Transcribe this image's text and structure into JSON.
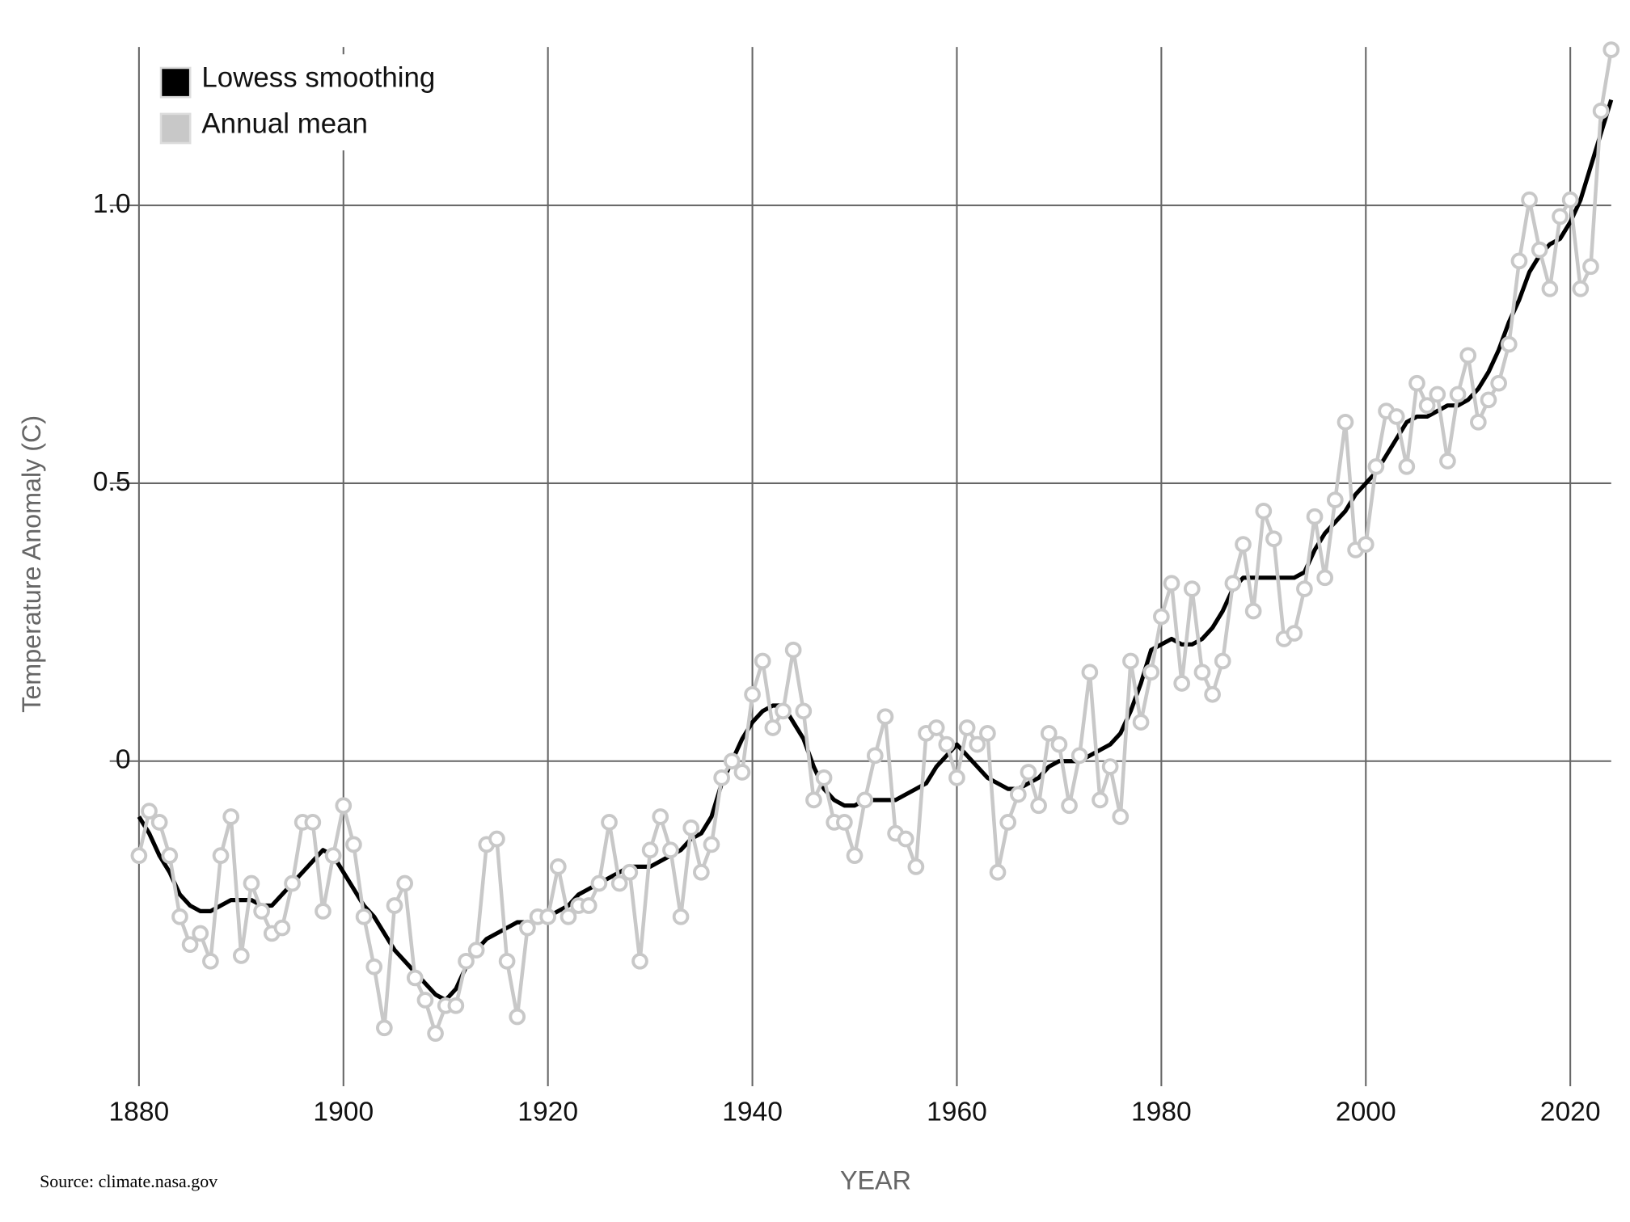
{
  "chart_data": {
    "type": "line",
    "xlabel": "YEAR",
    "ylabel": "Temperature Anomaly (C)",
    "source": "Source: climate.nasa.gov",
    "x": [
      1880,
      1881,
      1882,
      1883,
      1884,
      1885,
      1886,
      1887,
      1888,
      1889,
      1890,
      1891,
      1892,
      1893,
      1894,
      1895,
      1896,
      1897,
      1898,
      1899,
      1900,
      1901,
      1902,
      1903,
      1904,
      1905,
      1906,
      1907,
      1908,
      1909,
      1910,
      1911,
      1912,
      1913,
      1914,
      1915,
      1916,
      1917,
      1918,
      1919,
      1920,
      1921,
      1922,
      1923,
      1924,
      1925,
      1926,
      1927,
      1928,
      1929,
      1930,
      1931,
      1932,
      1933,
      1934,
      1935,
      1936,
      1937,
      1938,
      1939,
      1940,
      1941,
      1942,
      1943,
      1944,
      1945,
      1946,
      1947,
      1948,
      1949,
      1950,
      1951,
      1952,
      1953,
      1954,
      1955,
      1956,
      1957,
      1958,
      1959,
      1960,
      1961,
      1962,
      1963,
      1964,
      1965,
      1966,
      1967,
      1968,
      1969,
      1970,
      1971,
      1972,
      1973,
      1974,
      1975,
      1976,
      1977,
      1978,
      1979,
      1980,
      1981,
      1982,
      1983,
      1984,
      1985,
      1986,
      1987,
      1988,
      1989,
      1990,
      1991,
      1992,
      1993,
      1994,
      1995,
      1996,
      1997,
      1998,
      1999,
      2000,
      2001,
      2002,
      2003,
      2004,
      2005,
      2006,
      2007,
      2008,
      2009,
      2010,
      2011,
      2012,
      2013,
      2014,
      2015,
      2016,
      2017,
      2018,
      2019,
      2020,
      2021,
      2022,
      2023,
      2024
    ],
    "series": [
      {
        "name": "Lowess smoothing",
        "color": "#000000",
        "marker": "none",
        "values": [
          -0.1,
          -0.13,
          -0.17,
          -0.2,
          -0.24,
          -0.26,
          -0.27,
          -0.27,
          -0.26,
          -0.25,
          -0.25,
          -0.25,
          -0.26,
          -0.26,
          -0.24,
          -0.22,
          -0.2,
          -0.18,
          -0.16,
          -0.17,
          -0.2,
          -0.23,
          -0.26,
          -0.28,
          -0.31,
          -0.34,
          -0.36,
          -0.38,
          -0.4,
          -0.42,
          -0.43,
          -0.41,
          -0.37,
          -0.34,
          -0.32,
          -0.31,
          -0.3,
          -0.29,
          -0.29,
          -0.29,
          -0.28,
          -0.27,
          -0.26,
          -0.24,
          -0.23,
          -0.22,
          -0.21,
          -0.2,
          -0.19,
          -0.19,
          -0.19,
          -0.18,
          -0.17,
          -0.16,
          -0.14,
          -0.13,
          -0.1,
          -0.04,
          0.0,
          0.04,
          0.07,
          0.09,
          0.1,
          0.1,
          0.07,
          0.04,
          -0.01,
          -0.05,
          -0.07,
          -0.08,
          -0.08,
          -0.07,
          -0.07,
          -0.07,
          -0.07,
          -0.06,
          -0.05,
          -0.04,
          -0.01,
          0.01,
          0.03,
          0.01,
          -0.01,
          -0.03,
          -0.04,
          -0.05,
          -0.05,
          -0.04,
          -0.03,
          -0.01,
          0.0,
          0.0,
          0.0,
          0.01,
          0.02,
          0.03,
          0.05,
          0.09,
          0.14,
          0.2,
          0.21,
          0.22,
          0.21,
          0.21,
          0.22,
          0.24,
          0.27,
          0.31,
          0.33,
          0.33,
          0.33,
          0.33,
          0.33,
          0.33,
          0.34,
          0.38,
          0.41,
          0.43,
          0.45,
          0.48,
          0.5,
          0.52,
          0.55,
          0.58,
          0.61,
          0.62,
          0.62,
          0.63,
          0.64,
          0.64,
          0.65,
          0.67,
          0.7,
          0.74,
          0.79,
          0.83,
          0.88,
          0.91,
          0.93,
          0.94,
          0.97,
          1.01,
          1.07,
          1.13,
          1.19
        ]
      },
      {
        "name": "Annual mean",
        "color": "#c8c8c8",
        "marker": "circle",
        "values": [
          -0.17,
          -0.09,
          -0.11,
          -0.17,
          -0.28,
          -0.33,
          -0.31,
          -0.36,
          -0.17,
          -0.1,
          -0.35,
          -0.22,
          -0.27,
          -0.31,
          -0.3,
          -0.22,
          -0.11,
          -0.11,
          -0.27,
          -0.17,
          -0.08,
          -0.15,
          -0.28,
          -0.37,
          -0.48,
          -0.26,
          -0.22,
          -0.39,
          -0.43,
          -0.49,
          -0.44,
          -0.44,
          -0.36,
          -0.34,
          -0.15,
          -0.14,
          -0.36,
          -0.46,
          -0.3,
          -0.28,
          -0.28,
          -0.19,
          -0.28,
          -0.26,
          -0.26,
          -0.22,
          -0.11,
          -0.22,
          -0.2,
          -0.36,
          -0.16,
          -0.1,
          -0.16,
          -0.28,
          -0.12,
          -0.2,
          -0.15,
          -0.03,
          0.0,
          -0.02,
          0.12,
          0.18,
          0.06,
          0.09,
          0.2,
          0.09,
          -0.07,
          -0.03,
          -0.11,
          -0.11,
          -0.17,
          -0.07,
          0.01,
          0.08,
          -0.13,
          -0.14,
          -0.19,
          0.05,
          0.06,
          0.03,
          -0.03,
          0.06,
          0.03,
          0.05,
          -0.2,
          -0.11,
          -0.06,
          -0.02,
          -0.08,
          0.05,
          0.03,
          -0.08,
          0.01,
          0.16,
          -0.07,
          -0.01,
          -0.1,
          0.18,
          0.07,
          0.16,
          0.26,
          0.32,
          0.14,
          0.31,
          0.16,
          0.12,
          0.18,
          0.32,
          0.39,
          0.27,
          0.45,
          0.4,
          0.22,
          0.23,
          0.31,
          0.44,
          0.33,
          0.47,
          0.61,
          0.38,
          0.39,
          0.53,
          0.63,
          0.62,
          0.53,
          0.68,
          0.64,
          0.66,
          0.54,
          0.66,
          0.73,
          0.61,
          0.65,
          0.68,
          0.75,
          0.9,
          1.01,
          0.92,
          0.85,
          0.98,
          1.01,
          0.85,
          0.89,
          1.17,
          1.28
        ]
      }
    ],
    "xlim": [
      1880,
      2024
    ],
    "xticks": [
      1880,
      1900,
      1920,
      1940,
      1960,
      1980,
      2000,
      2020
    ],
    "ylim": [
      -0.585,
      1.285
    ],
    "yticks": [
      0,
      0.5,
      {
        "value": 1,
        "label": "1.0"
      }
    ],
    "grid": true,
    "legend": "upper left"
  }
}
